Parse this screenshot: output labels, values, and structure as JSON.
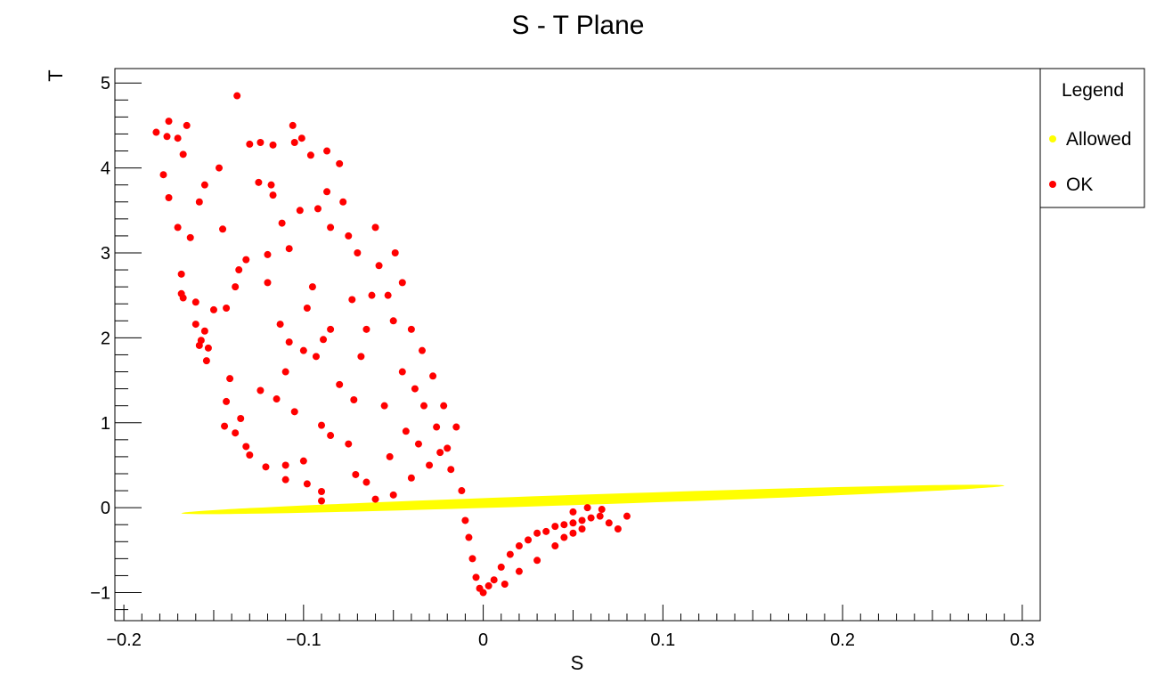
{
  "chart_data": {
    "type": "scatter",
    "title": "S - T Plane",
    "xlabel": "S",
    "ylabel": "T",
    "xlim": [
      -0.205,
      0.31
    ],
    "ylim": [
      -1.33,
      5.17
    ],
    "x_ticks": [
      {
        "value": -0.2,
        "label": "−0.2"
      },
      {
        "value": -0.1,
        "label": "−0.1"
      },
      {
        "value": 0,
        "label": "0"
      },
      {
        "value": 0.1,
        "label": "0.1"
      },
      {
        "value": 0.2,
        "label": "0.2"
      },
      {
        "value": 0.3,
        "label": "0.3"
      }
    ],
    "y_ticks": [
      {
        "value": -1,
        "label": "−1"
      },
      {
        "value": 0,
        "label": "0"
      },
      {
        "value": 1,
        "label": "1"
      },
      {
        "value": 2,
        "label": "2"
      },
      {
        "value": 3,
        "label": "3"
      },
      {
        "value": 4,
        "label": "4"
      },
      {
        "value": 5,
        "label": "5"
      }
    ],
    "grid": false,
    "legend": {
      "title": "Legend",
      "position": "top-right",
      "entries": [
        {
          "label": "Allowed",
          "color": "#ffff00"
        },
        {
          "label": "OK",
          "color": "#ff0000"
        }
      ]
    },
    "series": [
      {
        "name": "Allowed",
        "color": "#ffff00",
        "region": {
          "shape": "ellipse",
          "end_a": [
            -0.168,
            -0.065
          ],
          "end_b": [
            0.29,
            0.26
          ],
          "half_width_T": 0.06
        }
      },
      {
        "name": "OK",
        "color": "#ff0000",
        "points": [
          [
            -0.137,
            4.85
          ],
          [
            -0.182,
            4.42
          ],
          [
            -0.175,
            4.55
          ],
          [
            -0.17,
            4.35
          ],
          [
            -0.165,
            4.5
          ],
          [
            -0.176,
            4.37
          ],
          [
            -0.167,
            4.16
          ],
          [
            -0.178,
            3.92
          ],
          [
            -0.175,
            3.65
          ],
          [
            -0.158,
            3.6
          ],
          [
            -0.147,
            4.0
          ],
          [
            -0.155,
            3.8
          ],
          [
            -0.163,
            3.18
          ],
          [
            -0.145,
            3.28
          ],
          [
            -0.17,
            3.3
          ],
          [
            -0.168,
            2.75
          ],
          [
            -0.168,
            2.52
          ],
          [
            -0.167,
            2.47
          ],
          [
            -0.16,
            2.42
          ],
          [
            -0.15,
            2.33
          ],
          [
            -0.16,
            2.16
          ],
          [
            -0.155,
            2.08
          ],
          [
            -0.157,
            1.97
          ],
          [
            -0.158,
            1.91
          ],
          [
            -0.153,
            1.88
          ],
          [
            -0.154,
            1.73
          ],
          [
            -0.136,
            2.8
          ],
          [
            -0.132,
            2.92
          ],
          [
            -0.13,
            4.28
          ],
          [
            -0.124,
            4.3
          ],
          [
            -0.125,
            3.83
          ],
          [
            -0.106,
            4.5
          ],
          [
            -0.105,
            4.3
          ],
          [
            -0.117,
            4.27
          ],
          [
            -0.118,
            3.8
          ],
          [
            -0.117,
            3.68
          ],
          [
            -0.101,
            4.35
          ],
          [
            -0.096,
            4.15
          ],
          [
            -0.087,
            4.2
          ],
          [
            -0.112,
            3.35
          ],
          [
            -0.102,
            3.5
          ],
          [
            -0.108,
            3.05
          ],
          [
            -0.12,
            2.98
          ],
          [
            -0.12,
            2.65
          ],
          [
            -0.138,
            2.6
          ],
          [
            -0.143,
            2.35
          ],
          [
            -0.141,
            1.52
          ],
          [
            -0.143,
            1.25
          ],
          [
            -0.135,
            1.05
          ],
          [
            -0.144,
            0.96
          ],
          [
            -0.138,
            0.88
          ],
          [
            -0.132,
            0.72
          ],
          [
            -0.13,
            0.62
          ],
          [
            -0.124,
            1.38
          ],
          [
            -0.121,
            0.48
          ],
          [
            -0.105,
            1.13
          ],
          [
            -0.11,
            0.5
          ],
          [
            -0.1,
            0.55
          ],
          [
            -0.11,
            0.33
          ],
          [
            -0.098,
            0.28
          ],
          [
            -0.113,
            2.16
          ],
          [
            -0.108,
            1.95
          ],
          [
            -0.11,
            1.6
          ],
          [
            -0.115,
            1.28
          ],
          [
            -0.1,
            1.85
          ],
          [
            -0.093,
            1.78
          ],
          [
            -0.09,
            0.97
          ],
          [
            -0.085,
            0.85
          ],
          [
            -0.09,
            0.19
          ],
          [
            -0.09,
            0.08
          ],
          [
            -0.089,
            1.98
          ],
          [
            -0.095,
            2.6
          ],
          [
            -0.098,
            2.35
          ],
          [
            -0.085,
            3.3
          ],
          [
            -0.087,
            3.72
          ],
          [
            -0.092,
            3.52
          ],
          [
            -0.08,
            4.05
          ],
          [
            -0.078,
            3.6
          ],
          [
            -0.085,
            2.1
          ],
          [
            -0.08,
            1.45
          ],
          [
            -0.075,
            0.75
          ],
          [
            -0.071,
            0.39
          ],
          [
            -0.065,
            0.3
          ],
          [
            -0.06,
            0.1
          ],
          [
            -0.075,
            3.2
          ],
          [
            -0.07,
            3.0
          ],
          [
            -0.073,
            2.45
          ],
          [
            -0.068,
            1.78
          ],
          [
            -0.072,
            1.27
          ],
          [
            -0.065,
            2.1
          ],
          [
            -0.06,
            3.3
          ],
          [
            -0.058,
            2.85
          ],
          [
            -0.062,
            2.5
          ],
          [
            -0.055,
            1.2
          ],
          [
            -0.052,
            0.6
          ],
          [
            -0.05,
            0.15
          ],
          [
            -0.053,
            2.5
          ],
          [
            -0.049,
            3.0
          ],
          [
            -0.05,
            2.2
          ],
          [
            -0.045,
            1.6
          ],
          [
            -0.043,
            0.9
          ],
          [
            -0.04,
            0.35
          ],
          [
            -0.045,
            2.65
          ],
          [
            -0.04,
            2.1
          ],
          [
            -0.038,
            1.4
          ],
          [
            -0.036,
            0.75
          ],
          [
            -0.034,
            1.85
          ],
          [
            -0.033,
            1.2
          ],
          [
            -0.03,
            0.5
          ],
          [
            -0.028,
            1.55
          ],
          [
            -0.026,
            0.95
          ],
          [
            -0.024,
            0.65
          ],
          [
            -0.022,
            1.2
          ],
          [
            -0.02,
            0.7
          ],
          [
            -0.018,
            0.45
          ],
          [
            -0.015,
            0.95
          ],
          [
            -0.012,
            0.2
          ],
          [
            -0.01,
            -0.15
          ],
          [
            -0.008,
            -0.35
          ],
          [
            -0.006,
            -0.6
          ],
          [
            -0.004,
            -0.82
          ],
          [
            -0.002,
            -0.95
          ],
          [
            0.0,
            -1.0
          ],
          [
            0.003,
            -0.92
          ],
          [
            0.006,
            -0.85
          ],
          [
            0.01,
            -0.7
          ],
          [
            0.015,
            -0.55
          ],
          [
            0.02,
            -0.45
          ],
          [
            0.025,
            -0.38
          ],
          [
            0.03,
            -0.3
          ],
          [
            0.035,
            -0.28
          ],
          [
            0.04,
            -0.22
          ],
          [
            0.045,
            -0.2
          ],
          [
            0.05,
            -0.18
          ],
          [
            0.055,
            -0.15
          ],
          [
            0.06,
            -0.12
          ],
          [
            0.065,
            -0.1
          ],
          [
            0.07,
            -0.18
          ],
          [
            0.075,
            -0.25
          ],
          [
            0.08,
            -0.1
          ],
          [
            0.05,
            -0.05
          ],
          [
            0.058,
            0.0
          ],
          [
            0.066,
            -0.02
          ],
          [
            0.04,
            -0.45
          ],
          [
            0.03,
            -0.62
          ],
          [
            0.02,
            -0.75
          ],
          [
            0.012,
            -0.9
          ],
          [
            0.045,
            -0.35
          ],
          [
            0.05,
            -0.3
          ],
          [
            0.055,
            -0.25
          ]
        ]
      }
    ]
  }
}
